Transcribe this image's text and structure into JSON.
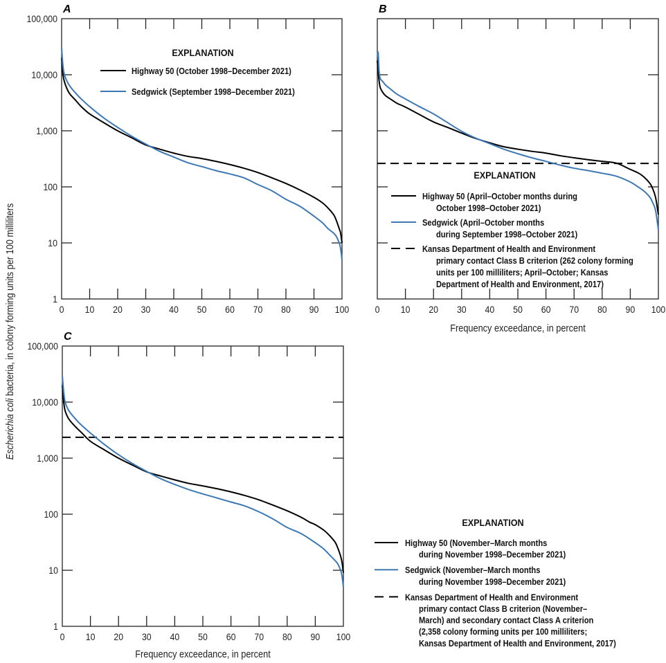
{
  "y_axis_label": {
    "italic": "Escherichia coli",
    "rest": " bacteria, in colony forming units per 100 milliliters"
  },
  "x_axis_label": "Frequency exceedance, in percent",
  "colors": {
    "highway50": "#000000",
    "sedgwick": "#3b78b4",
    "criterion": "#000000"
  },
  "chart_data": [
    {
      "panel": "A",
      "type": "line",
      "xlim": [
        0,
        100
      ],
      "ylim": [
        1,
        100000
      ],
      "yscale": "log",
      "x_ticks": [
        "0",
        "10",
        "20",
        "30",
        "40",
        "50",
        "60",
        "70",
        "80",
        "90",
        "100"
      ],
      "y_ticks": [
        "1",
        "10",
        "100",
        "1,000",
        "10,000",
        "100,000"
      ],
      "show_y_tick_labels": true,
      "show_x_title": false,
      "legend": {
        "title": "EXPLANATION",
        "items": [
          {
            "style": "highway50",
            "lines": [
              "Highway 50 (October 1998–December 2021)"
            ]
          },
          {
            "style": "sedgwick",
            "lines": [
              "Sedgwick (September 1998–December 2021)"
            ]
          }
        ]
      },
      "series": [
        {
          "name": "Highway 50",
          "style": "highway50",
          "x": [
            0,
            0.5,
            1,
            2,
            3,
            5,
            7,
            10,
            15,
            20,
            25,
            30,
            35,
            40,
            45,
            50,
            55,
            60,
            65,
            70,
            75,
            80,
            85,
            90,
            93,
            95,
            97,
            98,
            99,
            99.5,
            100
          ],
          "y": [
            20000,
            10000,
            7500,
            5500,
            4500,
            3500,
            2700,
            2000,
            1400,
            1000,
            750,
            560,
            470,
            400,
            350,
            320,
            285,
            250,
            215,
            180,
            145,
            115,
            88,
            65,
            52,
            42,
            32,
            25,
            18,
            15,
            10
          ]
        },
        {
          "name": "Sedgwick",
          "style": "sedgwick",
          "x": [
            0,
            0.5,
            1,
            2,
            3,
            5,
            7,
            10,
            15,
            20,
            25,
            30,
            35,
            40,
            45,
            50,
            55,
            60,
            65,
            70,
            75,
            80,
            85,
            90,
            93,
            95,
            97,
            98,
            99,
            99.5,
            100
          ],
          "y": [
            30000,
            14000,
            10000,
            7500,
            6200,
            4700,
            3700,
            2700,
            1700,
            1150,
            800,
            580,
            430,
            340,
            270,
            230,
            195,
            170,
            145,
            110,
            85,
            60,
            45,
            30,
            23,
            18,
            15,
            13,
            10,
            8,
            5
          ]
        }
      ],
      "reference_lines": []
    },
    {
      "panel": "B",
      "type": "line",
      "xlim": [
        0,
        100
      ],
      "ylim": [
        1,
        100000
      ],
      "yscale": "log",
      "x_ticks": [
        "0",
        "10",
        "20",
        "30",
        "40",
        "50",
        "60",
        "70",
        "80",
        "90",
        "100"
      ],
      "y_ticks": [
        "1",
        "10",
        "100",
        "1,000",
        "10,000",
        "100,000"
      ],
      "show_y_tick_labels": false,
      "show_x_title": true,
      "legend": {
        "title": "EXPLANATION",
        "items": [
          {
            "style": "highway50",
            "lines": [
              "Highway 50 (April–October months during",
              "October 1998–October 2021)"
            ]
          },
          {
            "style": "sedgwick",
            "lines": [
              "Sedgwick (April–October months",
              "during September 1998–October 2021)"
            ]
          },
          {
            "style": "criterion",
            "lines": [
              "Kansas Department of Health and Environment",
              "primary contact Class B criterion (262 colony forming",
              "units per 100 milliliters; April–October; Kansas",
              "Department of Health and Environment, 2017)"
            ]
          }
        ]
      },
      "series": [
        {
          "name": "Highway 50",
          "style": "highway50",
          "x": [
            0,
            0.5,
            1,
            2,
            3,
            5,
            7,
            10,
            15,
            20,
            25,
            30,
            35,
            40,
            45,
            50,
            55,
            60,
            65,
            70,
            75,
            80,
            85,
            90,
            93,
            95,
            97,
            98,
            99,
            100
          ],
          "y": [
            18000,
            9000,
            6000,
            4800,
            4200,
            3600,
            3100,
            2650,
            1950,
            1440,
            1150,
            910,
            730,
            610,
            520,
            470,
            430,
            400,
            360,
            330,
            305,
            285,
            265,
            205,
            175,
            148,
            115,
            92,
            65,
            32
          ]
        },
        {
          "name": "Sedgwick",
          "style": "sedgwick",
          "x": [
            0,
            0.3,
            0.6,
            1,
            2,
            3,
            5,
            7,
            10,
            15,
            20,
            25,
            30,
            35,
            40,
            45,
            50,
            55,
            60,
            65,
            70,
            75,
            80,
            85,
            90,
            93,
            95,
            97,
            98,
            99,
            100
          ],
          "y": [
            20000,
            25000,
            12000,
            8700,
            7500,
            6500,
            5400,
            4500,
            3700,
            2700,
            2000,
            1400,
            980,
            740,
            590,
            470,
            390,
            330,
            285,
            245,
            215,
            195,
            175,
            155,
            122,
            98,
            83,
            65,
            52,
            38,
            17
          ]
        }
      ],
      "reference_lines": [
        {
          "style": "criterion",
          "value": 262
        }
      ]
    },
    {
      "panel": "C",
      "type": "line",
      "xlim": [
        0,
        100
      ],
      "ylim": [
        1,
        100000
      ],
      "yscale": "log",
      "x_ticks": [
        "0",
        "10",
        "20",
        "30",
        "40",
        "50",
        "60",
        "70",
        "80",
        "90",
        "100"
      ],
      "y_ticks": [
        "1",
        "10",
        "100",
        "1,000",
        "10,000",
        "100,000"
      ],
      "show_y_tick_labels": true,
      "show_x_title": true,
      "legend": {
        "title": "EXPLANATION",
        "items": [
          {
            "style": "highway50",
            "lines": [
              "Highway 50 (November–March months",
              "during November 1998–December 2021)"
            ]
          },
          {
            "style": "sedgwick",
            "lines": [
              "Sedgwick (November–March months",
              "during November 1998–December 2021)"
            ]
          },
          {
            "style": "criterion",
            "lines": [
              "Kansas Department of Health and Environment",
              "primary contact Class B criterion (November–",
              "March) and secondary contact Class A criterion",
              "(2,358 colony forming units per 100 milliliters;",
              "Kansas Department of Health and Environment, 2017)"
            ]
          }
        ]
      },
      "series": [
        {
          "name": "Highway 50",
          "style": "highway50",
          "x": [
            0,
            0.5,
            1,
            2,
            3,
            5,
            7,
            10,
            15,
            20,
            25,
            30,
            35,
            40,
            45,
            50,
            55,
            60,
            65,
            70,
            75,
            80,
            85,
            88,
            90,
            93,
            95,
            97,
            98,
            99,
            99.5,
            100
          ],
          "y": [
            20000,
            10000,
            7000,
            5300,
            4500,
            3500,
            2800,
            2000,
            1400,
            1000,
            750,
            570,
            480,
            410,
            355,
            320,
            285,
            250,
            215,
            180,
            145,
            115,
            88,
            72,
            65,
            52,
            42,
            32,
            25,
            18,
            14,
            9
          ]
        },
        {
          "name": "Sedgwick",
          "style": "sedgwick",
          "x": [
            0,
            0.5,
            1,
            2,
            3,
            5,
            7,
            10,
            15,
            20,
            25,
            30,
            35,
            40,
            45,
            50,
            55,
            60,
            65,
            70,
            75,
            80,
            85,
            90,
            93,
            95,
            97,
            98,
            99,
            99.5,
            100
          ],
          "y": [
            30000,
            15000,
            10000,
            7500,
            6300,
            4800,
            3800,
            2800,
            1750,
            1150,
            800,
            580,
            430,
            340,
            275,
            230,
            195,
            165,
            140,
            110,
            82,
            58,
            45,
            31,
            24,
            19,
            15,
            13,
            10,
            8,
            5
          ]
        }
      ],
      "reference_lines": [
        {
          "style": "criterion",
          "value": 2358
        }
      ]
    }
  ]
}
